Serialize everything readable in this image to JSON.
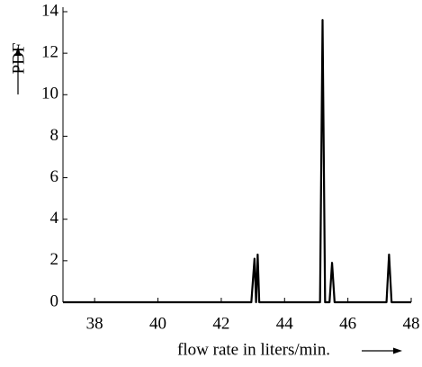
{
  "chart_data": {
    "type": "line",
    "x_label": "flow rate in liters/min.",
    "y_label": "PDF",
    "x": [
      37,
      42.95,
      43.05,
      43.1,
      43.15,
      43.2,
      45.12,
      45.2,
      45.28,
      45.42,
      45.5,
      45.58,
      47.22,
      47.3,
      47.38,
      48
    ],
    "values": [
      0,
      0,
      2.1,
      0,
      2.3,
      0,
      0,
      13.6,
      0,
      0,
      1.9,
      0,
      0,
      2.3,
      0,
      0
    ],
    "color": "#000000",
    "xlim": [
      37,
      48
    ],
    "xticks": [
      38,
      40,
      42,
      44,
      46,
      48
    ],
    "ylim": [
      0,
      14
    ],
    "yticks": [
      0,
      2,
      4,
      6,
      8,
      10,
      12,
      14
    ]
  }
}
